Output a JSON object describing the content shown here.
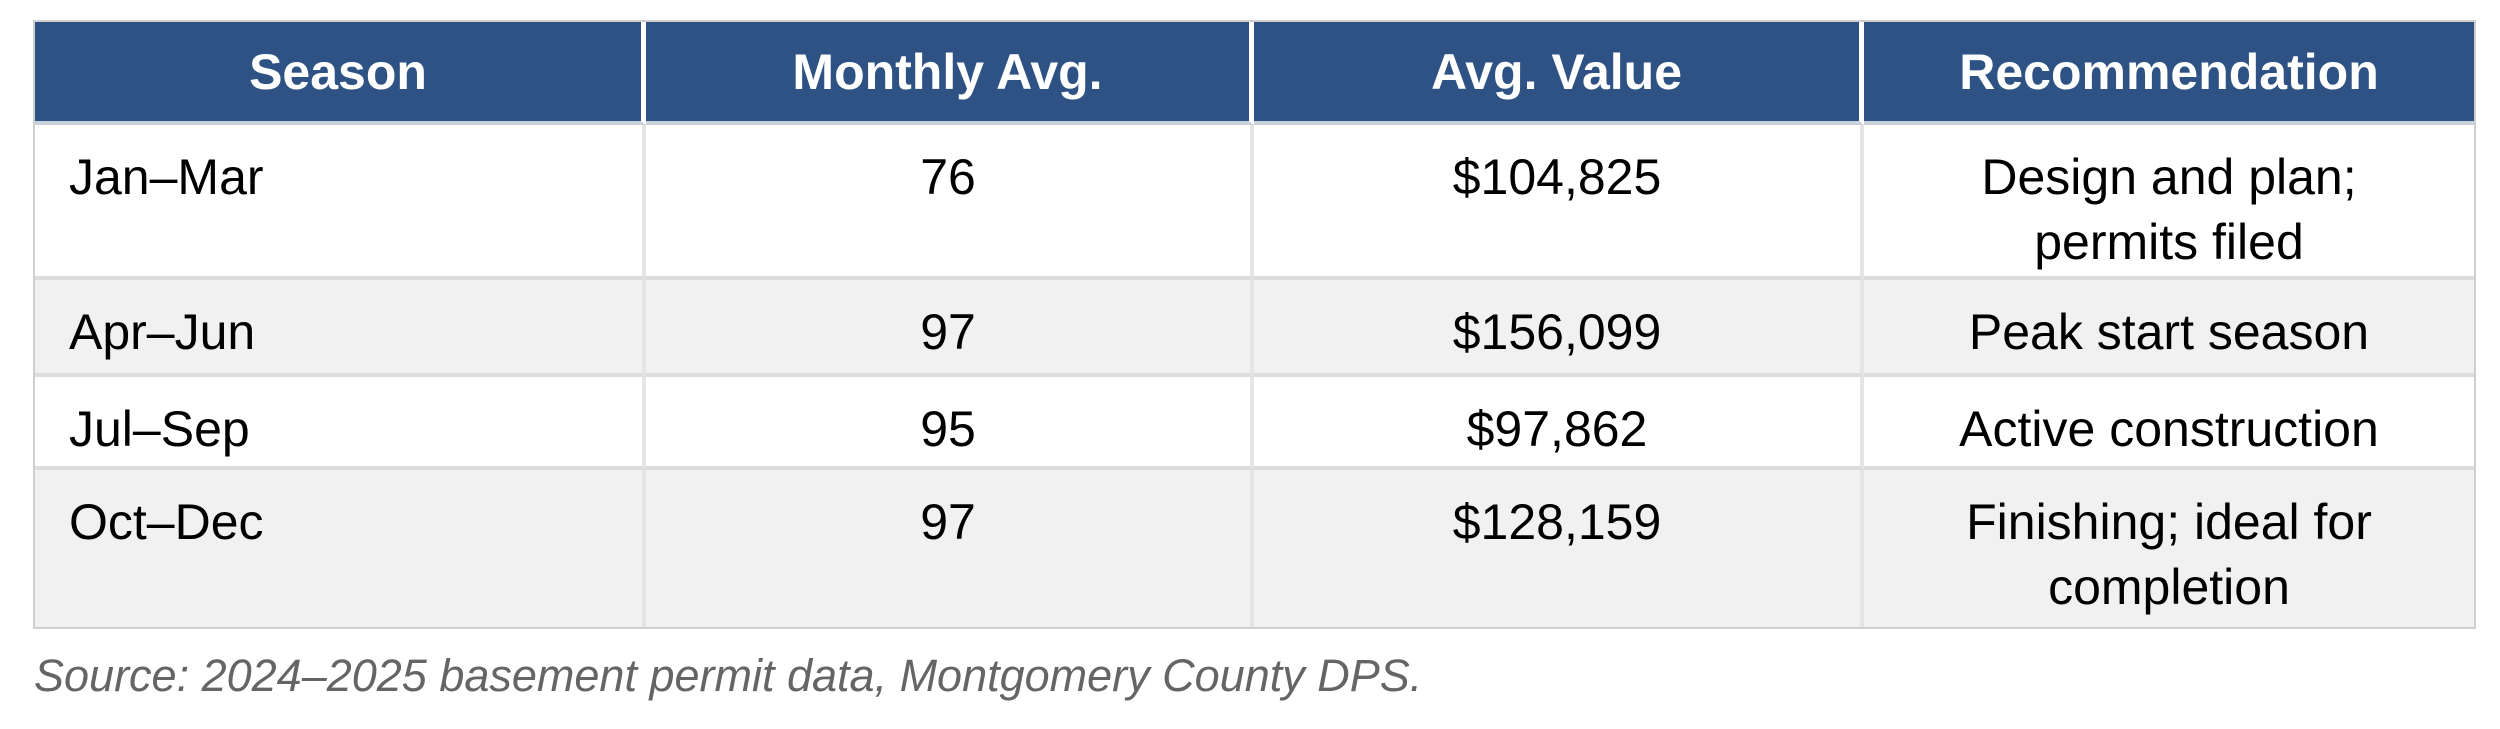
{
  "chart_data": {
    "type": "table",
    "columns": [
      "Season",
      "Monthly Avg.",
      "Avg. Value",
      "Recommendation"
    ],
    "rows": [
      [
        "Jan–Mar",
        76,
        "$104,825",
        "Design and plan; permits filed"
      ],
      [
        "Apr–Jun",
        97,
        "$156,099",
        "Peak start season"
      ],
      [
        "Jul–Sep",
        95,
        "$97,862",
        "Active construction"
      ],
      [
        "Oct–Dec",
        97,
        "$128,159",
        "Finishing; ideal for completion"
      ]
    ],
    "source": "Source: 2024–2025 basement permit data, Montgomery County DPS."
  },
  "colors": {
    "header_bg": "#2E5283",
    "header_text": "#FFFFFF",
    "body_text": "#000000",
    "row_alt_bg": "#F1F1F1",
    "border": "#DCDCDC",
    "source_text": "#656565"
  }
}
